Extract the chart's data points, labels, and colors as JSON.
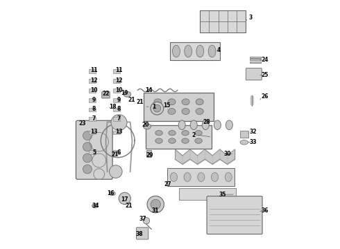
{
  "bg_color": "#ffffff",
  "line_color": "#555555",
  "text_color": "#000000",
  "label_data": [
    [
      3,
      0.825,
      0.93
    ],
    [
      4,
      0.695,
      0.8
    ],
    [
      1,
      0.435,
      0.572
    ],
    [
      2,
      0.595,
      0.458
    ],
    [
      11,
      0.195,
      0.718
    ],
    [
      12,
      0.195,
      0.678
    ],
    [
      10,
      0.195,
      0.638
    ],
    [
      9,
      0.195,
      0.6
    ],
    [
      8,
      0.195,
      0.562
    ],
    [
      7,
      0.195,
      0.524
    ],
    [
      13,
      0.195,
      0.472
    ],
    [
      5,
      0.195,
      0.388
    ],
    [
      11,
      0.295,
      0.718
    ],
    [
      12,
      0.295,
      0.678
    ],
    [
      10,
      0.295,
      0.638
    ],
    [
      9,
      0.295,
      0.6
    ],
    [
      8,
      0.295,
      0.562
    ],
    [
      7,
      0.295,
      0.524
    ],
    [
      13,
      0.295,
      0.472
    ],
    [
      6,
      0.295,
      0.388
    ],
    [
      14,
      0.415,
      0.638
    ],
    [
      15,
      0.488,
      0.578
    ],
    [
      18,
      0.27,
      0.572
    ],
    [
      19,
      0.318,
      0.628
    ],
    [
      21,
      0.345,
      0.6
    ],
    [
      22,
      0.242,
      0.625
    ],
    [
      23,
      0.148,
      0.505
    ],
    [
      20,
      0.402,
      0.498
    ],
    [
      16,
      0.262,
      0.222
    ],
    [
      17,
      0.318,
      0.198
    ],
    [
      21,
      0.335,
      0.172
    ],
    [
      21,
      0.378,
      0.592
    ],
    [
      21,
      0.278,
      0.378
    ],
    [
      24,
      0.882,
      0.76
    ],
    [
      25,
      0.882,
      0.7
    ],
    [
      26,
      0.882,
      0.612
    ],
    [
      32,
      0.835,
      0.47
    ],
    [
      33,
      0.835,
      0.428
    ],
    [
      28,
      0.648,
      0.51
    ],
    [
      30,
      0.732,
      0.382
    ],
    [
      29,
      0.418,
      0.375
    ],
    [
      27,
      0.492,
      0.258
    ],
    [
      35,
      0.712,
      0.218
    ],
    [
      36,
      0.882,
      0.152
    ],
    [
      34,
      0.202,
      0.172
    ],
    [
      31,
      0.442,
      0.152
    ],
    [
      37,
      0.392,
      0.118
    ],
    [
      38,
      0.378,
      0.058
    ]
  ]
}
